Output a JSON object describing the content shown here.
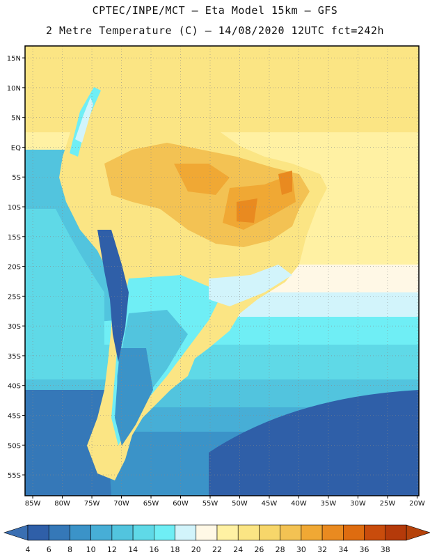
{
  "header": {
    "line1": "CPTEC/INPE/MCT –  Eta Model 15km – GFS",
    "line2": "2 Metre Temperature (C) – 14/08/2020 12UTC fct=242h"
  },
  "map": {
    "latitude_labels": [
      "15N",
      "10N",
      "5N",
      "EQ",
      "5S",
      "10S",
      "15S",
      "20S",
      "25S",
      "30S",
      "35S",
      "40S",
      "45S",
      "50S",
      "55S"
    ],
    "latitude_values": [
      15,
      10,
      5,
      0,
      -5,
      -10,
      -15,
      -20,
      -25,
      -30,
      -35,
      -40,
      -45,
      -50,
      -55
    ],
    "lat_range": [
      17,
      -58.5
    ],
    "longitude_labels": [
      "85W",
      "80W",
      "75W",
      "70W",
      "65W",
      "60W",
      "55W",
      "50W",
      "45W",
      "40W",
      "35W",
      "30W",
      "25W",
      "20W"
    ],
    "longitude_values": [
      -85,
      -80,
      -75,
      -70,
      -65,
      -60,
      -55,
      -50,
      -45,
      -40,
      -35,
      -30,
      -25,
      -20
    ],
    "lon_range": [
      -86.3,
      -19.7
    ]
  },
  "colorbar": {
    "labels": [
      "4",
      "6",
      "8",
      "10",
      "12",
      "14",
      "16",
      "18",
      "20",
      "22",
      "24",
      "26",
      "28",
      "30",
      "32",
      "34",
      "36",
      "38"
    ],
    "low_color": "#3a6fb2",
    "high_color": "#b5420a",
    "colors": [
      "#2f5fa8",
      "#3578b8",
      "#3b93c8",
      "#47aed6",
      "#52c4de",
      "#5fd9e7",
      "#6feef5",
      "#d2f4fb",
      "#fff8e6",
      "#fff1a3",
      "#fbe584",
      "#f7d66a",
      "#f3c253",
      "#f0a834",
      "#e98a20",
      "#de6c10",
      "#c94c0c",
      "#b53a0a"
    ]
  }
}
